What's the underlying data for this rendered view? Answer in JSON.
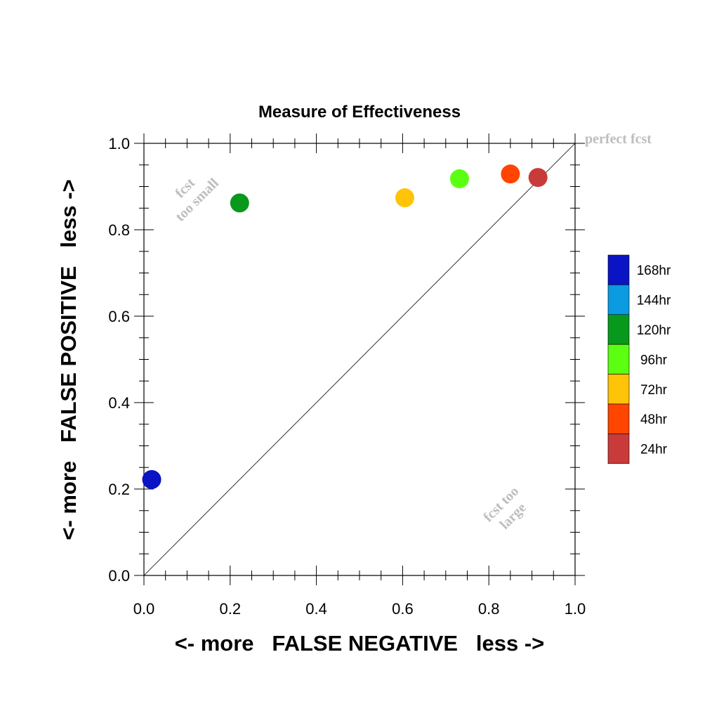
{
  "chart_data": {
    "type": "scatter",
    "title": "Measure of Effectiveness",
    "xlabel": "<- more   FALSE NEGATIVE   less ->",
    "ylabel": "<- more   FALSE POSITIVE   less ->",
    "xlim": [
      0.0,
      1.0
    ],
    "ylim": [
      0.0,
      1.0
    ],
    "xticks": [
      "0.0",
      "0.2",
      "0.4",
      "0.6",
      "0.8",
      "1.0"
    ],
    "yticks": [
      "0.0",
      "0.2",
      "0.4",
      "0.6",
      "0.8",
      "1.0"
    ],
    "grid": false,
    "diagonal_line": true,
    "annotations": {
      "perfect": "perfect fcst",
      "too_small_line1": "fcst",
      "too_small_line2": "too small",
      "too_large_line1": "fcst too",
      "too_large_line2": "large"
    },
    "legend_position": "right",
    "legend": [
      {
        "label": "168hr",
        "color": "#0a14c4"
      },
      {
        "label": "144hr",
        "color": "#0a9be0"
      },
      {
        "label": "120hr",
        "color": "#07991c"
      },
      {
        "label": "96hr",
        "color": "#5cff12"
      },
      {
        "label": "72hr",
        "color": "#ffc408"
      },
      {
        "label": "48hr",
        "color": "#ff4500"
      },
      {
        "label": "24hr",
        "color": "#c93b3b"
      }
    ],
    "points": [
      {
        "series": "168hr",
        "x": 0.018,
        "y": 0.222,
        "color": "#0a14c4"
      },
      {
        "series": "120hr",
        "x": 0.222,
        "y": 0.862,
        "color": "#07991c"
      },
      {
        "series": "72hr",
        "x": 0.605,
        "y": 0.874,
        "color": "#ffc408"
      },
      {
        "series": "96hr",
        "x": 0.732,
        "y": 0.918,
        "color": "#5cff12"
      },
      {
        "series": "48hr",
        "x": 0.85,
        "y": 0.929,
        "color": "#ff4500"
      },
      {
        "series": "24hr",
        "x": 0.914,
        "y": 0.921,
        "color": "#c93b3b"
      }
    ]
  }
}
